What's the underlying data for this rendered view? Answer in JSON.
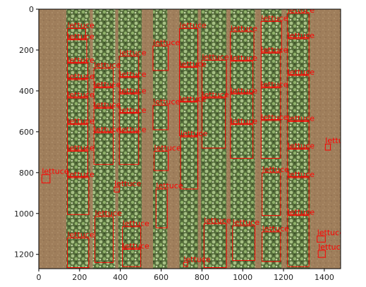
{
  "chart_data": {
    "type": "image",
    "xlim": [
      0,
      1480
    ],
    "ylim": [
      1270,
      0
    ],
    "x_ticks": [
      0,
      200,
      400,
      600,
      800,
      1000,
      1200,
      1400
    ],
    "y_ticks": [
      0,
      200,
      400,
      600,
      800,
      1000,
      1200
    ],
    "colors": {
      "box": "#ff0000",
      "label": "#ff0000",
      "soil": "#9c7b58",
      "crop": "#4c7a3a"
    },
    "crop_columns": [
      {
        "x0": 135,
        "x1": 250
      },
      {
        "x0": 265,
        "x1": 375
      },
      {
        "x0": 390,
        "x1": 505
      },
      {
        "x0": 560,
        "x1": 630
      },
      {
        "x0": 690,
        "x1": 780
      },
      {
        "x0": 795,
        "x1": 920
      },
      {
        "x0": 940,
        "x1": 1060
      },
      {
        "x0": 1090,
        "x1": 1190
      },
      {
        "x0": 1215,
        "x1": 1330
      }
    ],
    "detections": [
      {
        "label": "lettuce",
        "x0": 140,
        "y0": 95,
        "x1": 230,
        "y1": 145
      },
      {
        "label": "lettuce",
        "x0": 140,
        "y0": 150,
        "x1": 235,
        "y1": 260
      },
      {
        "label": "lettuce",
        "x0": 140,
        "y0": 265,
        "x1": 240,
        "y1": 340
      },
      {
        "label": "lettuce",
        "x0": 140,
        "y0": 345,
        "x1": 240,
        "y1": 430
      },
      {
        "label": "lettuce",
        "x0": 140,
        "y0": 435,
        "x1": 240,
        "y1": 560
      },
      {
        "label": "lettuce",
        "x0": 140,
        "y0": 565,
        "x1": 240,
        "y1": 690
      },
      {
        "label": "lettuce",
        "x0": 140,
        "y0": 695,
        "x1": 240,
        "y1": 820
      },
      {
        "label": "lettuce",
        "x0": 140,
        "y0": 825,
        "x1": 245,
        "y1": 1005
      },
      {
        "label": "lettuce",
        "x0": 140,
        "y0": 1120,
        "x1": 245,
        "y1": 1265
      },
      {
        "label": "lettuce",
        "x0": 270,
        "y0": 290,
        "x1": 365,
        "y1": 380
      },
      {
        "label": "lettuce",
        "x0": 270,
        "y0": 385,
        "x1": 365,
        "y1": 480
      },
      {
        "label": "lettuce",
        "x0": 270,
        "y0": 485,
        "x1": 365,
        "y1": 600
      },
      {
        "label": "lettuce",
        "x0": 270,
        "y0": 605,
        "x1": 365,
        "y1": 760
      },
      {
        "label": "lettuce",
        "x0": 275,
        "y0": 1015,
        "x1": 365,
        "y1": 1240
      },
      {
        "label": "lettuce",
        "x0": 395,
        "y0": 230,
        "x1": 490,
        "y1": 330
      },
      {
        "label": "lettuce",
        "x0": 395,
        "y0": 335,
        "x1": 490,
        "y1": 410
      },
      {
        "label": "lettuce",
        "x0": 395,
        "y0": 415,
        "x1": 490,
        "y1": 505
      },
      {
        "label": "lettuce",
        "x0": 395,
        "y0": 510,
        "x1": 490,
        "y1": 600
      },
      {
        "label": "lettuce",
        "x0": 395,
        "y0": 605,
        "x1": 490,
        "y1": 760
      },
      {
        "label": "lettuce",
        "x0": 410,
        "y0": 1065,
        "x1": 500,
        "y1": 1170
      },
      {
        "label": "lettuce",
        "x0": 410,
        "y0": 1175,
        "x1": 500,
        "y1": 1260
      },
      {
        "label": "lettuce",
        "x0": 560,
        "y0": 180,
        "x1": 635,
        "y1": 300
      },
      {
        "label": "lettuce",
        "x0": 560,
        "y0": 470,
        "x1": 635,
        "y1": 590
      },
      {
        "label": "lettuce",
        "x0": 565,
        "y0": 695,
        "x1": 635,
        "y1": 790
      },
      {
        "label": "lettuce",
        "x0": 575,
        "y0": 880,
        "x1": 630,
        "y1": 1070
      },
      {
        "label": "lettuce",
        "x0": 690,
        "y0": 95,
        "x1": 780,
        "y1": 280
      },
      {
        "label": "lettuce",
        "x0": 690,
        "y0": 285,
        "x1": 780,
        "y1": 450
      },
      {
        "label": "lettuce",
        "x0": 690,
        "y0": 455,
        "x1": 780,
        "y1": 620
      },
      {
        "label": "lettuce",
        "x0": 695,
        "y0": 625,
        "x1": 780,
        "y1": 880
      },
      {
        "label": "lettuce",
        "x0": 800,
        "y0": 250,
        "x1": 920,
        "y1": 430
      },
      {
        "label": "lettuce",
        "x0": 800,
        "y0": 435,
        "x1": 915,
        "y1": 680
      },
      {
        "label": "lettuce",
        "x0": 810,
        "y0": 1050,
        "x1": 920,
        "y1": 1265
      },
      {
        "label": "lettuce",
        "x0": 940,
        "y0": 110,
        "x1": 1055,
        "y1": 250
      },
      {
        "label": "lettuce",
        "x0": 940,
        "y0": 255,
        "x1": 1050,
        "y1": 410
      },
      {
        "label": "lettuce",
        "x0": 940,
        "y0": 415,
        "x1": 1050,
        "y1": 560
      },
      {
        "label": "lettuce",
        "x0": 940,
        "y0": 565,
        "x1": 1050,
        "y1": 730
      },
      {
        "label": "lettuce",
        "x0": 950,
        "y0": 1060,
        "x1": 1060,
        "y1": 1230
      },
      {
        "label": "lettuce",
        "x0": 1090,
        "y0": 60,
        "x1": 1190,
        "y1": 210
      },
      {
        "label": "lettuce",
        "x0": 1090,
        "y0": 215,
        "x1": 1185,
        "y1": 380
      },
      {
        "label": "lettuce",
        "x0": 1090,
        "y0": 385,
        "x1": 1185,
        "y1": 540
      },
      {
        "label": "lettuce",
        "x0": 1090,
        "y0": 545,
        "x1": 1185,
        "y1": 730
      },
      {
        "label": "lettuce",
        "x0": 1095,
        "y0": 800,
        "x1": 1185,
        "y1": 1010
      },
      {
        "label": "lettuce",
        "x0": 1095,
        "y0": 1090,
        "x1": 1185,
        "y1": 1235
      },
      {
        "label": "lettuce",
        "x0": 1220,
        "y0": 20,
        "x1": 1325,
        "y1": 140
      },
      {
        "label": "lettuce",
        "x0": 1220,
        "y0": 145,
        "x1": 1325,
        "y1": 320
      },
      {
        "label": "lettuce",
        "x0": 1220,
        "y0": 325,
        "x1": 1325,
        "y1": 545
      },
      {
        "label": "lettuce",
        "x0": 1220,
        "y0": 550,
        "x1": 1325,
        "y1": 680
      },
      {
        "label": "lettuce",
        "x0": 1220,
        "y0": 685,
        "x1": 1325,
        "y1": 820
      },
      {
        "label": "lettuce",
        "x0": 1220,
        "y0": 825,
        "x1": 1325,
        "y1": 1005
      },
      {
        "label": "lettuce",
        "x0": 1220,
        "y0": 1010,
        "x1": 1325,
        "y1": 1260
      },
      {
        "label": "lettuce",
        "x0": 15,
        "y0": 810,
        "x1": 55,
        "y1": 850
      },
      {
        "label": "lettuce",
        "x0": 1405,
        "y0": 660,
        "x1": 1430,
        "y1": 690
      },
      {
        "label": "lettuce",
        "x0": 370,
        "y0": 870,
        "x1": 395,
        "y1": 895
      },
      {
        "label": "lettuce",
        "x0": 710,
        "y0": 1240,
        "x1": 730,
        "y1": 1260
      },
      {
        "label": "lettuce",
        "x0": 1365,
        "y0": 1110,
        "x1": 1405,
        "y1": 1140
      },
      {
        "label": "lettuce",
        "x0": 1370,
        "y0": 1180,
        "x1": 1405,
        "y1": 1215
      }
    ]
  }
}
